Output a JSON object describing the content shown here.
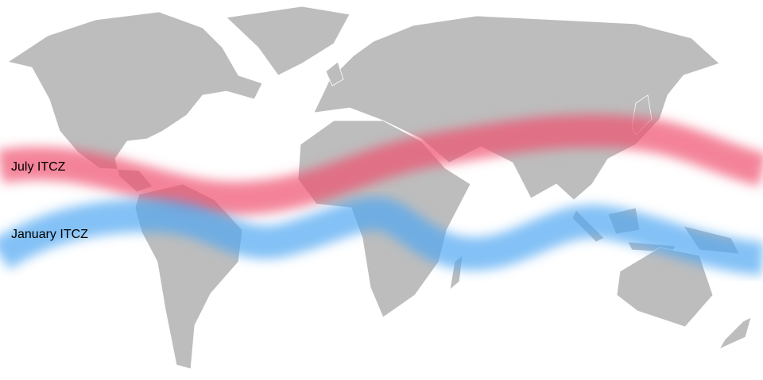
{
  "labels": {
    "july": "July ITCZ",
    "january": "January ITCZ"
  },
  "colors": {
    "land": "#bdbdbd",
    "borders": "#ffffff",
    "july_band": "#f0506e",
    "january_band": "#4ea6f2",
    "ocean": "#ffffff"
  }
}
